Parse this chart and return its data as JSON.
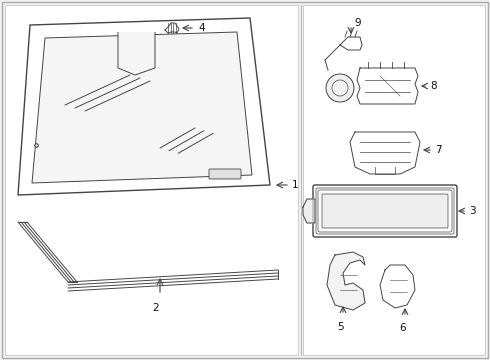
{
  "background_color": "#f2f2f2",
  "panel_bg": "#ffffff",
  "line_color": "#444444",
  "label_color": "#111111",
  "fig_width": 4.9,
  "fig_height": 3.6,
  "dpi": 100
}
